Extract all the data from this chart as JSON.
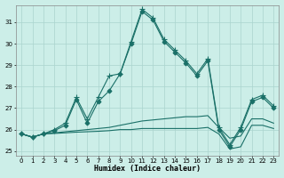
{
  "xlabel": "Humidex (Indice chaleur)",
  "background_color": "#cceee8",
  "grid_color": "#aad4ce",
  "line_color": "#1a7068",
  "xlim": [
    -0.5,
    23.5
  ],
  "ylim": [
    24.8,
    31.8
  ],
  "yticks": [
    25,
    26,
    27,
    28,
    29,
    30,
    31
  ],
  "xticks": [
    0,
    1,
    2,
    3,
    4,
    5,
    6,
    7,
    8,
    9,
    10,
    11,
    12,
    13,
    14,
    15,
    16,
    17,
    18,
    19,
    20,
    21,
    22,
    23
  ],
  "lines": [
    {
      "x": [
        0,
        1,
        2,
        3,
        4,
        5,
        6,
        7,
        8,
        9,
        10,
        11,
        12,
        13,
        14,
        15,
        16,
        17,
        18,
        19,
        20,
        21,
        22,
        23
      ],
      "y": [
        25.8,
        25.65,
        25.8,
        25.95,
        26.2,
        27.4,
        26.3,
        27.3,
        27.8,
        28.6,
        30.0,
        31.5,
        31.1,
        30.1,
        29.6,
        29.1,
        28.5,
        29.2,
        26.0,
        25.2,
        26.0,
        27.3,
        27.5,
        27.0
      ],
      "marker": "D",
      "markersize": 2.5
    },
    {
      "x": [
        0,
        1,
        2,
        3,
        4,
        5,
        6,
        7,
        8,
        9,
        10,
        11,
        12,
        13,
        14,
        15,
        16,
        17,
        18,
        19,
        20,
        21,
        22,
        23
      ],
      "y": [
        25.8,
        25.65,
        25.8,
        26.0,
        26.3,
        27.5,
        26.5,
        27.5,
        28.5,
        28.6,
        30.1,
        31.6,
        31.2,
        30.2,
        29.7,
        29.2,
        28.6,
        29.3,
        26.1,
        25.3,
        26.1,
        27.4,
        27.6,
        27.1
      ],
      "marker": "+",
      "markersize": 4
    },
    {
      "x": [
        0,
        1,
        2,
        3,
        4,
        5,
        6,
        7,
        8,
        9,
        10,
        11,
        12,
        13,
        14,
        15,
        16,
        17,
        18,
        19,
        20,
        21,
        22,
        23
      ],
      "y": [
        25.8,
        25.65,
        25.8,
        25.85,
        25.9,
        25.95,
        26.0,
        26.05,
        26.1,
        26.2,
        26.3,
        26.4,
        26.45,
        26.5,
        26.55,
        26.6,
        26.6,
        26.65,
        26.1,
        25.6,
        25.7,
        26.5,
        26.5,
        26.3
      ],
      "marker": null,
      "markersize": 0
    },
    {
      "x": [
        0,
        1,
        2,
        3,
        4,
        5,
        6,
        7,
        8,
        9,
        10,
        11,
        12,
        13,
        14,
        15,
        16,
        17,
        18,
        19,
        20,
        21,
        22,
        23
      ],
      "y": [
        25.8,
        25.65,
        25.8,
        25.82,
        25.85,
        25.88,
        25.9,
        25.92,
        25.95,
        26.0,
        26.0,
        26.05,
        26.05,
        26.05,
        26.05,
        26.05,
        26.05,
        26.1,
        25.8,
        25.1,
        25.2,
        26.2,
        26.2,
        26.05
      ],
      "marker": null,
      "markersize": 0
    }
  ]
}
